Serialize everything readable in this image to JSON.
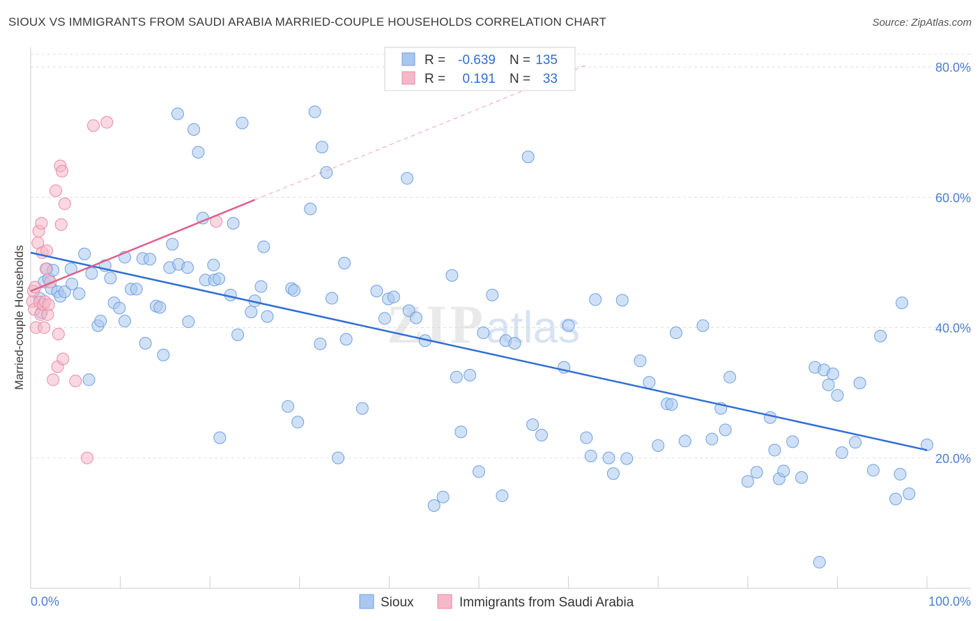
{
  "header": {
    "title": "SIOUX VS IMMIGRANTS FROM SAUDI ARABIA MARRIED-COUPLE HOUSEHOLDS CORRELATION CHART",
    "source": "Source: ZipAtlas.com"
  },
  "watermark": "ZIPatlas",
  "stats_legend": [
    {
      "r_label": "R =",
      "r_value": "-0.639",
      "n_label": "N =",
      "n_value": "135",
      "color": "#a9c8f0"
    },
    {
      "r_label": "R =",
      "r_value": "0.191",
      "n_label": "N =",
      "n_value": "33",
      "color": "#f5b8c8"
    }
  ],
  "chart_data": {
    "type": "scatter",
    "title": "SIOUX VS IMMIGRANTS FROM SAUDI ARABIA MARRIED-COUPLE HOUSEHOLDS CORRELATION CHART",
    "ylabel": "Married-couple Households",
    "xlim": [
      0,
      100
    ],
    "ylim": [
      0,
      83
    ],
    "x_ticks": [
      "0.0%",
      "100.0%"
    ],
    "y_ticks": [
      {
        "value": 20,
        "label": "20.0%"
      },
      {
        "value": 40,
        "label": "40.0%"
      },
      {
        "value": 60,
        "label": "60.0%"
      },
      {
        "value": 80,
        "label": "80.0%"
      }
    ],
    "grid": "horizontal dashed",
    "legend_position": "bottom",
    "series": [
      {
        "name": "Sioux",
        "color": "#a9c8f0",
        "stroke": "#6d9fe0",
        "trend": {
          "x": [
            0,
            100
          ],
          "y": [
            51.5,
            21.2
          ],
          "color": "#2f6fd3"
        },
        "points": [
          [
            1.0,
            44.5
          ],
          [
            1.2,
            42.3
          ],
          [
            1.5,
            47.0
          ],
          [
            1.8,
            49.0
          ],
          [
            2.0,
            47.5
          ],
          [
            2.3,
            46.0
          ],
          [
            2.5,
            48.8
          ],
          [
            3.0,
            45.5
          ],
          [
            3.3,
            44.8
          ],
          [
            3.8,
            45.5
          ],
          [
            4.5,
            49.0
          ],
          [
            4.6,
            46.7
          ],
          [
            5.4,
            45.2
          ],
          [
            6.0,
            51.3
          ],
          [
            6.5,
            32.0
          ],
          [
            6.8,
            48.3
          ],
          [
            7.5,
            40.3
          ],
          [
            7.8,
            41.0
          ],
          [
            8.3,
            49.5
          ],
          [
            8.9,
            47.6
          ],
          [
            9.3,
            43.8
          ],
          [
            9.9,
            43.0
          ],
          [
            10.5,
            41.0
          ],
          [
            10.5,
            50.8
          ],
          [
            11.2,
            45.9
          ],
          [
            11.8,
            45.9
          ],
          [
            12.5,
            50.6
          ],
          [
            12.8,
            37.6
          ],
          [
            13.3,
            50.5
          ],
          [
            14.0,
            43.3
          ],
          [
            14.4,
            43.1
          ],
          [
            14.8,
            35.8
          ],
          [
            15.5,
            49.2
          ],
          [
            15.8,
            52.8
          ],
          [
            16.4,
            72.8
          ],
          [
            16.5,
            49.7
          ],
          [
            17.5,
            49.2
          ],
          [
            17.6,
            40.9
          ],
          [
            18.2,
            70.4
          ],
          [
            18.7,
            66.9
          ],
          [
            19.2,
            56.8
          ],
          [
            19.5,
            47.3
          ],
          [
            20.4,
            49.6
          ],
          [
            20.5,
            47.3
          ],
          [
            21.0,
            47.5
          ],
          [
            21.1,
            23.1
          ],
          [
            22.3,
            45.0
          ],
          [
            22.6,
            56.0
          ],
          [
            23.1,
            38.9
          ],
          [
            23.6,
            71.4
          ],
          [
            24.6,
            42.4
          ],
          [
            25.0,
            44.1
          ],
          [
            25.7,
            46.3
          ],
          [
            26.0,
            52.4
          ],
          [
            26.4,
            41.7
          ],
          [
            28.7,
            27.9
          ],
          [
            29.1,
            46.0
          ],
          [
            29.4,
            45.7
          ],
          [
            29.8,
            25.5
          ],
          [
            31.2,
            58.2
          ],
          [
            31.7,
            73.1
          ],
          [
            32.3,
            37.5
          ],
          [
            32.5,
            67.7
          ],
          [
            33.0,
            63.8
          ],
          [
            33.6,
            44.5
          ],
          [
            34.3,
            20.0
          ],
          [
            35.0,
            49.9
          ],
          [
            35.2,
            38.2
          ],
          [
            37.0,
            27.6
          ],
          [
            38.6,
            45.6
          ],
          [
            39.5,
            41.4
          ],
          [
            39.9,
            44.4
          ],
          [
            40.5,
            44.7
          ],
          [
            42.0,
            62.9
          ],
          [
            42.2,
            42.6
          ],
          [
            43.0,
            41.5
          ],
          [
            44.0,
            38.0
          ],
          [
            45.0,
            12.7
          ],
          [
            46.0,
            14.0
          ],
          [
            47.0,
            48.0
          ],
          [
            47.5,
            32.4
          ],
          [
            48.0,
            24.0
          ],
          [
            49.0,
            32.7
          ],
          [
            50.0,
            17.9
          ],
          [
            50.5,
            39.2
          ],
          [
            51.5,
            45.0
          ],
          [
            52.6,
            14.2
          ],
          [
            53.0,
            38.0
          ],
          [
            54.0,
            37.6
          ],
          [
            55.5,
            66.2
          ],
          [
            56.0,
            25.1
          ],
          [
            57.0,
            23.5
          ],
          [
            60.0,
            40.3
          ],
          [
            59.5,
            33.9
          ],
          [
            62.0,
            23.1
          ],
          [
            62.5,
            20.3
          ],
          [
            63.0,
            44.3
          ],
          [
            64.5,
            20.0
          ],
          [
            65.0,
            17.6
          ],
          [
            66.0,
            44.2
          ],
          [
            66.5,
            19.9
          ],
          [
            68.0,
            34.9
          ],
          [
            69.0,
            31.6
          ],
          [
            70.0,
            21.9
          ],
          [
            71.0,
            28.3
          ],
          [
            71.5,
            28.2
          ],
          [
            72.0,
            39.2
          ],
          [
            73.0,
            22.6
          ],
          [
            75.0,
            40.3
          ],
          [
            76.0,
            22.9
          ],
          [
            77.0,
            27.6
          ],
          [
            77.5,
            24.3
          ],
          [
            78.0,
            32.4
          ],
          [
            80.0,
            16.4
          ],
          [
            81.0,
            17.8
          ],
          [
            82.5,
            26.2
          ],
          [
            83.0,
            21.2
          ],
          [
            83.5,
            16.8
          ],
          [
            84.0,
            18.0
          ],
          [
            85.0,
            22.5
          ],
          [
            86.0,
            17.0
          ],
          [
            87.5,
            33.9
          ],
          [
            88.0,
            4.0
          ],
          [
            88.5,
            33.5
          ],
          [
            89.0,
            31.2
          ],
          [
            89.5,
            32.9
          ],
          [
            90.0,
            29.6
          ],
          [
            90.5,
            20.8
          ],
          [
            92.0,
            22.4
          ],
          [
            92.5,
            31.5
          ],
          [
            94.0,
            18.1
          ],
          [
            94.8,
            38.7
          ],
          [
            96.5,
            13.7
          ],
          [
            97.0,
            17.5
          ],
          [
            97.2,
            43.8
          ],
          [
            98.0,
            14.5
          ],
          [
            100.0,
            22.0
          ]
        ]
      },
      {
        "name": "Immigrants from Saudi Arabia",
        "color": "#f5b8c8",
        "stroke": "#e88aa6",
        "trend": {
          "x": [
            0,
            25
          ],
          "y": [
            45.6,
            59.6
          ],
          "color": "#e0608a",
          "dashed_to": {
            "x": 62,
            "y": 80.3
          }
        },
        "points": [
          [
            0.2,
            44.0
          ],
          [
            0.3,
            45.6
          ],
          [
            0.4,
            42.8
          ],
          [
            0.5,
            46.2
          ],
          [
            0.6,
            40.0
          ],
          [
            0.8,
            53.0
          ],
          [
            0.9,
            54.8
          ],
          [
            1.0,
            43.9
          ],
          [
            1.1,
            42.0
          ],
          [
            1.2,
            56.0
          ],
          [
            1.3,
            51.5
          ],
          [
            1.4,
            43.5
          ],
          [
            1.5,
            40.0
          ],
          [
            1.6,
            44.0
          ],
          [
            1.7,
            49.0
          ],
          [
            1.8,
            51.8
          ],
          [
            1.9,
            42.0
          ],
          [
            2.0,
            43.5
          ],
          [
            2.2,
            47.0
          ],
          [
            2.5,
            32.0
          ],
          [
            2.8,
            61.0
          ],
          [
            3.0,
            34.0
          ],
          [
            3.1,
            39.0
          ],
          [
            3.3,
            64.8
          ],
          [
            3.4,
            55.8
          ],
          [
            3.5,
            64.0
          ],
          [
            3.6,
            35.2
          ],
          [
            3.8,
            59.0
          ],
          [
            5.0,
            31.8
          ],
          [
            6.3,
            20.0
          ],
          [
            7.0,
            71.0
          ],
          [
            8.5,
            71.5
          ],
          [
            20.7,
            56.3
          ]
        ]
      }
    ]
  }
}
